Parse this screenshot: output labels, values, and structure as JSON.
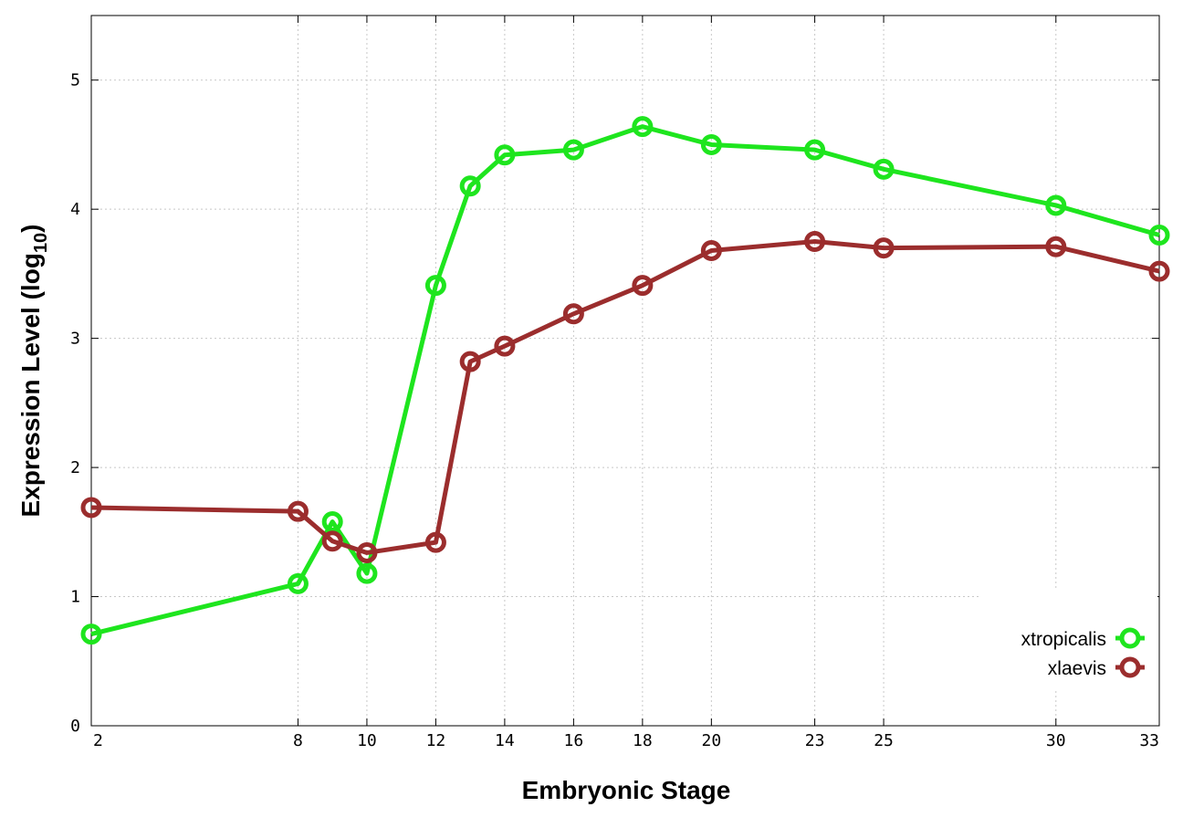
{
  "chart_data": {
    "type": "line",
    "xlabel": "Embryonic Stage",
    "ylabel_main": "Expression Level (log",
    "ylabel_sub": "10",
    "ylabel_close": ")",
    "ylim": [
      0,
      5.5
    ],
    "yticks": [
      0,
      1,
      2,
      3,
      4,
      5
    ],
    "categories": [
      "2",
      "8",
      "9",
      "10",
      "12",
      "13",
      "14",
      "16",
      "18",
      "20",
      "23",
      "25",
      "30",
      "33"
    ],
    "x_positions": [
      2,
      8,
      9,
      10,
      12,
      13,
      14,
      16,
      18,
      20,
      23,
      25,
      30,
      33
    ],
    "xticks": [
      2,
      8,
      10,
      12,
      14,
      16,
      18,
      20,
      23,
      25,
      30,
      33
    ],
    "grid": true,
    "legend_position": "bottom-right",
    "series": [
      {
        "name": "xtropicalis",
        "color": "#1ee51e",
        "values": [
          0.71,
          1.1,
          1.58,
          1.18,
          3.41,
          4.18,
          4.42,
          4.46,
          4.64,
          4.5,
          4.46,
          4.31,
          4.03,
          3.8
        ]
      },
      {
        "name": "xlaevis",
        "color": "#9b2d2d",
        "values": [
          1.69,
          1.66,
          1.43,
          1.34,
          1.42,
          2.82,
          2.94,
          3.19,
          3.41,
          3.68,
          3.75,
          3.7,
          3.71,
          3.52
        ]
      }
    ]
  }
}
